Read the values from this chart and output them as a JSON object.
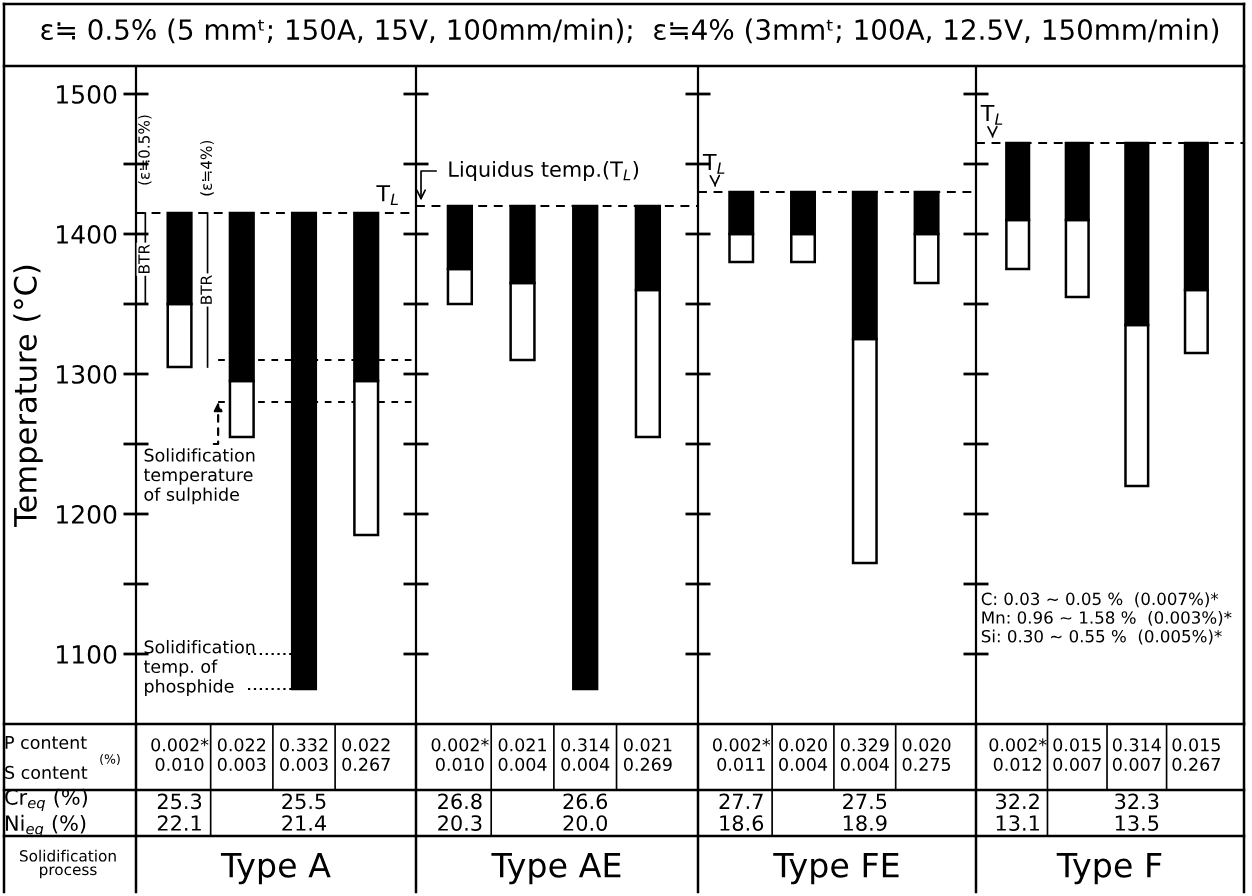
{
  "chart_data": [
    {
      "type": "bar",
      "title": "ε≒ 0.5% (5 mmᵗ; 150A, 15V, 100mm/min);  ε≒4% (3mmᵗ; 100A, 12.5V, 150mm/min)",
      "ylabel": "Temperature (°C)",
      "xlabel": "Type A",
      "categories": [
        "0.002*\n0.010",
        "0.022\n0.003",
        "0.332\n0.003",
        "0.022\n0.267"
      ],
      "series": [
        {
          "color": "#ffffff",
          "base": [
            1305,
            1255,
            null,
            1185
          ],
          "values": [
            45,
            40,
            null,
            110
          ]
        },
        {
          "color": "#000000",
          "base": [
            1350,
            1295,
            1075,
            1295
          ],
          "values": [
            65,
            120,
            340,
            120
          ]
        }
      ],
      "ylim": [
        1050,
        1520
      ],
      "yticks": [
        1100,
        {
          "value": 1150,
          "label": null
        },
        1200,
        {
          "value": 1250,
          "label": null
        },
        1300,
        {
          "value": 1350,
          "label": null
        },
        1400,
        {
          "value": 1450,
          "label": null
        },
        1500
      ],
      "ref_lines": [
        {
          "axis": "y",
          "value": 1415,
          "label": "T$_{L}$",
          "line_style": "dashed"
        },
        {
          "axis": "y",
          "value": 1310,
          "label": "Solidification\ntemperature\nof sulphide",
          "line_style": "dashed"
        },
        {
          "axis": "y",
          "value": 1280,
          "line_style": "dashed"
        },
        {
          "axis": "y",
          "value": 1100,
          "label": "Solidification\ntemp. of\nphosphide",
          "line_style": "dotted"
        },
        {
          "axis": "y",
          "value": 1075,
          "line_style": "dotted"
        }
      ],
      "annotations": [
        "(ε≒0.5%)",
        "(ε≒4%)",
        "BTR",
        "BTR",
        "P content",
        "S content",
        "(%)",
        "Cr$_{eq}$ (%)",
        "Ni$_{eq}$ (%)",
        "Solidification\nprocess",
        "25.3\n22.1",
        "25.5\n21.4"
      ]
    },
    {
      "type": "bar",
      "xlabel": "Type AE",
      "categories": [
        "0.002*\n0.010",
        "0.021\n0.004",
        "0.314\n0.004",
        "0.021\n0.269"
      ],
      "series": [
        {
          "color": "#ffffff",
          "base": [
            1350,
            1310,
            null,
            1255
          ],
          "values": [
            25,
            55,
            null,
            105
          ]
        },
        {
          "color": "#000000",
          "base": [
            1375,
            1365,
            1075,
            1360
          ],
          "values": [
            45,
            55,
            345,
            60
          ]
        }
      ],
      "ylim": [
        1050,
        1520
      ],
      "yticks": [
        1100,
        {
          "value": 1150,
          "label": null
        },
        1200,
        {
          "value": 1250,
          "label": null
        },
        1300,
        {
          "value": 1350,
          "label": null
        },
        1400,
        {
          "value": 1450,
          "label": null
        },
        1500
      ],
      "tick_labels": "x",
      "ref_lines": [
        {
          "axis": "y",
          "value": 1420,
          "label": "Liquidus temp.(T$_{L}$)",
          "line_style": "dashed"
        }
      ],
      "annotations": [
        "26.8\n20.3",
        "26.6\n20.0"
      ]
    },
    {
      "type": "bar",
      "xlabel": "Type FE",
      "categories": [
        "0.002*\n0.011",
        "0.020\n0.004",
        "0.329\n0.004",
        "0.020\n0.275"
      ],
      "series": [
        {
          "color": "#ffffff",
          "base": [
            1380,
            1380,
            1165,
            1365
          ],
          "values": [
            20,
            20,
            160,
            35
          ]
        },
        {
          "color": "#000000",
          "base": [
            1400,
            1400,
            1325,
            1400
          ],
          "values": [
            30,
            30,
            105,
            30
          ]
        }
      ],
      "ylim": [
        1050,
        1520
      ],
      "yticks": [
        1100,
        {
          "value": 1150,
          "label": null
        },
        1200,
        {
          "value": 1250,
          "label": null
        },
        1300,
        {
          "value": 1350,
          "label": null
        },
        1400,
        {
          "value": 1450,
          "label": null
        },
        1500
      ],
      "tick_labels": "x",
      "ref_lines": [
        {
          "axis": "y",
          "value": 1430,
          "label": "T$_{L}$",
          "line_style": "dashed"
        }
      ],
      "annotations": [
        "27.7\n18.6",
        "27.5\n18.9"
      ]
    },
    {
      "type": "bar",
      "xlabel": "Type F",
      "categories": [
        "0.002*\n0.012",
        "0.015\n0.007",
        "0.314\n0.007",
        "0.015\n0.267"
      ],
      "series": [
        {
          "color": "#ffffff",
          "base": [
            1375,
            1355,
            1220,
            1315
          ],
          "values": [
            35,
            55,
            115,
            45
          ]
        },
        {
          "color": "#000000",
          "base": [
            1410,
            1410,
            1335,
            1360
          ],
          "values": [
            55,
            55,
            130,
            105
          ]
        }
      ],
      "ylim": [
        1050,
        1520
      ],
      "yticks": [
        1100,
        {
          "value": 1150,
          "label": null
        },
        1200,
        {
          "value": 1250,
          "label": null
        },
        1300,
        {
          "value": 1350,
          "label": null
        },
        1400,
        {
          "value": 1450,
          "label": null
        },
        1500
      ],
      "tick_labels": "x",
      "ref_lines": [
        {
          "axis": "y",
          "value": 1465,
          "label": "T$_{L}$",
          "line_style": "dashed"
        }
      ],
      "annotations": [
        "32.2\n13.1",
        "32.3\n13.5",
        "C: 0.03 ~ 0.05 %  (0.007%)*\nMn: 0.96 ~ 1.58 %  (0.003%)*\nSi: 0.30 ~ 0.55 %  (0.005%)*"
      ]
    }
  ]
}
